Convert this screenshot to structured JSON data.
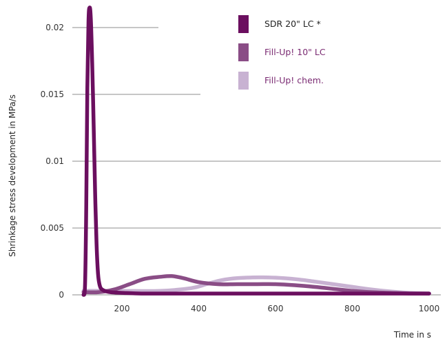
{
  "chart_data": {
    "type": "line",
    "title": "",
    "xlabel": "Time in s",
    "ylabel": "Shrinkage stress development in MPa/s",
    "xlim": [
      75,
      1000
    ],
    "ylim": [
      0,
      0.022
    ],
    "xticks": [
      200,
      400,
      600,
      800,
      1000
    ],
    "xtick_labels": [
      "200",
      "400",
      "600",
      "800",
      "1000"
    ],
    "yticks": [
      0,
      0.005,
      0.01,
      0.015,
      0.02
    ],
    "ytick_labels": [
      "0",
      "0.005",
      "0.01",
      "0.015",
      "0.02"
    ],
    "grid": "horizontal",
    "legend": "top-right",
    "series": [
      {
        "name": "SDR 20\" LC *",
        "color": "#6b0f5f",
        "x": [
          100,
          104,
          107,
          110,
          113,
          116,
          119,
          122,
          125,
          128,
          131,
          134,
          137,
          140,
          145,
          155,
          170,
          200,
          250,
          300,
          400,
          500,
          600,
          700,
          800,
          900,
          1000
        ],
        "y": [
          0,
          0.0008,
          0.0065,
          0.0155,
          0.0205,
          0.0215,
          0.0207,
          0.018,
          0.0145,
          0.0105,
          0.0068,
          0.0038,
          0.0019,
          0.001,
          0.0005,
          0.0003,
          0.0002,
          0.00015,
          0.0001,
          0.0001,
          0.0001,
          0.0001,
          0.0001,
          0.0001,
          0.0001,
          0.0001,
          0.0001
        ]
      },
      {
        "name": "Fill-Up! 10\" LC",
        "color": "#8a4d86",
        "x": [
          100,
          140,
          180,
          220,
          260,
          300,
          330,
          360,
          400,
          450,
          500,
          550,
          600,
          650,
          700,
          750,
          800,
          850,
          900,
          950,
          1000
        ],
        "y": [
          0.0002,
          0.0002,
          0.0004,
          0.0008,
          0.0012,
          0.00135,
          0.0014,
          0.00125,
          0.00095,
          0.0008,
          0.0008,
          0.0008,
          0.0008,
          0.00072,
          0.0006,
          0.00045,
          0.0003,
          0.0002,
          0.00015,
          0.0001,
          0.0001
        ]
      },
      {
        "name": "Fill-Up! chem.",
        "color": "#c8b2d2",
        "x": [
          100,
          200,
          300,
          380,
          420,
          460,
          500,
          540,
          580,
          620,
          660,
          700,
          750,
          800,
          850,
          900,
          950,
          1000
        ],
        "y": [
          0.0003,
          0.0003,
          0.0003,
          0.0005,
          0.0008,
          0.0011,
          0.00125,
          0.0013,
          0.0013,
          0.00125,
          0.00115,
          0.001,
          0.0008,
          0.0006,
          0.0004,
          0.00025,
          0.00015,
          0.0001
        ]
      }
    ]
  }
}
